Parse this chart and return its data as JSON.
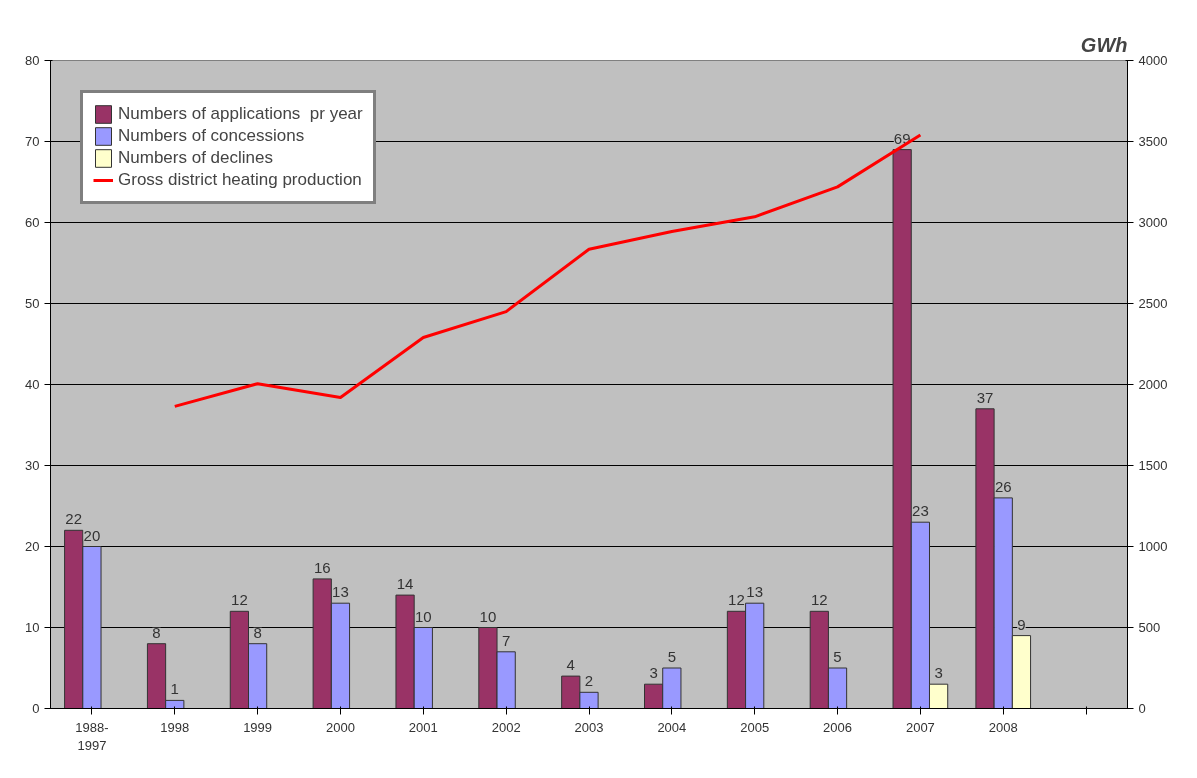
{
  "chart_data": {
    "type": "bar",
    "y2label": "GWh",
    "categories": [
      "1988-\n1997",
      "1998",
      "1999",
      "2000",
      "2001",
      "2002",
      "2003",
      "2004",
      "2005",
      "2006",
      "2007",
      "2008",
      null
    ],
    "series": [
      {
        "name": "Numbers of applications  pr year",
        "color": "#993366",
        "values": [
          22,
          8,
          12,
          16,
          14,
          10,
          4,
          3,
          12,
          12,
          69,
          37,
          null
        ],
        "value_labels": [
          "22",
          "8",
          "12",
          "16",
          "14",
          "10",
          "4",
          "3",
          "12",
          "12",
          "69",
          "37",
          null
        ]
      },
      {
        "name": "Numbers of concessions",
        "color": "#9999ff",
        "values": [
          20,
          1,
          8,
          13,
          10,
          7,
          2,
          5,
          13,
          5,
          23,
          26,
          null
        ],
        "value_labels": [
          "20",
          "1",
          "8",
          "13",
          "10",
          "7",
          "2",
          "5",
          "13",
          "5",
          "23",
          "26",
          null
        ]
      },
      {
        "name": "Numbers of declines",
        "color": "#ffffcc",
        "values": [
          null,
          null,
          null,
          null,
          null,
          null,
          null,
          null,
          null,
          null,
          3,
          9,
          null
        ],
        "value_labels": [
          null,
          null,
          null,
          null,
          null,
          null,
          null,
          null,
          null,
          null,
          "3",
          "9",
          null
        ]
      },
      {
        "name": "Gross district heating production",
        "type": "line",
        "axis": "y2",
        "color": "#ff0000",
        "values": [
          null,
          1865,
          2005,
          1920,
          2290,
          2450,
          2835,
          2945,
          3035,
          3220,
          3540,
          null,
          null
        ]
      }
    ],
    "ylim": [
      0,
      80
    ],
    "yticks": [
      0,
      10,
      20,
      30,
      40,
      50,
      60,
      70,
      80
    ],
    "y2lim": [
      0,
      4000
    ],
    "y2ticks": [
      0,
      500,
      1000,
      1500,
      2000,
      2500,
      3000,
      3500,
      4000
    ],
    "grid": "y",
    "legend": "top left"
  }
}
